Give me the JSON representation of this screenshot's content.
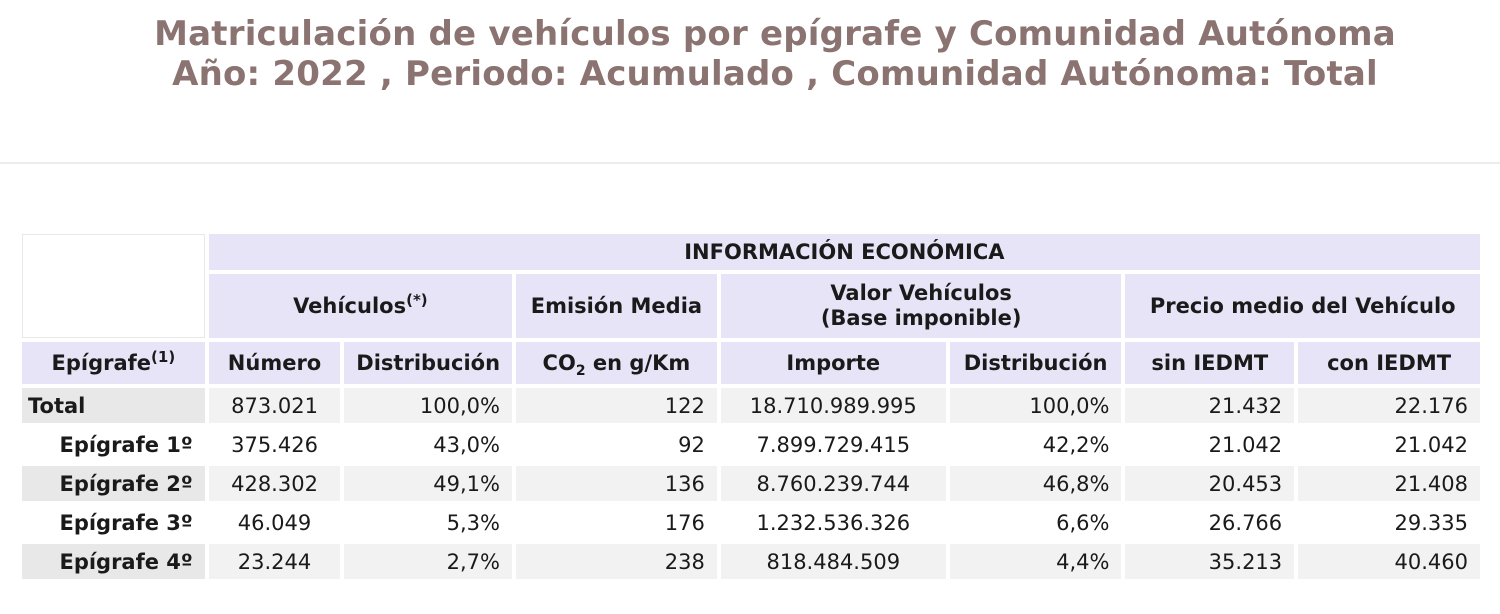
{
  "title": {
    "line1": "Matriculación de vehículos por epígrafe y Comunidad Autónoma",
    "line2": "Año: 2022 , Periodo: Acumulado , Comunidad Autónoma: Total"
  },
  "table": {
    "group_header": "INFORMACIÓN ECONÓMICA",
    "subgroups": {
      "vehiculos": "Vehículos",
      "vehiculos_note": "(*)",
      "emision": "Emisión Media",
      "valor_line1": "Valor Vehículos",
      "valor_line2": "(Base imponible)",
      "precio": "Precio medio del Vehículo"
    },
    "columns": {
      "epigrafe": "Epígrafe",
      "epigrafe_note": "(1)",
      "numero": "Número",
      "distribucion1": "Distribución",
      "co2_prefix": "CO",
      "co2_sub": "2",
      "co2_suffix": " en g/Km",
      "importe": "Importe",
      "distribucion2": "Distribución",
      "sin_iedmt": "sin IEDMT",
      "con_iedmt": "con IEDMT"
    },
    "rows": [
      {
        "label": "Total",
        "numero": "873.021",
        "dist1": "100,0%",
        "co2": "122",
        "importe": "18.710.989.995",
        "dist2": "100,0%",
        "sin": "21.432",
        "con": "22.176"
      },
      {
        "label": "Epígrafe 1º",
        "numero": "375.426",
        "dist1": "43,0%",
        "co2": "92",
        "importe": "7.899.729.415",
        "dist2": "42,2%",
        "sin": "21.042",
        "con": "21.042"
      },
      {
        "label": "Epígrafe 2º",
        "numero": "428.302",
        "dist1": "49,1%",
        "co2": "136",
        "importe": "8.760.239.744",
        "dist2": "46,8%",
        "sin": "20.453",
        "con": "21.408"
      },
      {
        "label": "Epígrafe 3º",
        "numero": "46.049",
        "dist1": "5,3%",
        "co2": "176",
        "importe": "1.232.536.326",
        "dist2": "6,6%",
        "sin": "26.766",
        "con": "29.335"
      },
      {
        "label": "Epígrafe 4º",
        "numero": "23.244",
        "dist1": "2,7%",
        "co2": "238",
        "importe": "818.484.509",
        "dist2": "4,4%",
        "sin": "35.213",
        "con": "40.460"
      }
    ]
  }
}
